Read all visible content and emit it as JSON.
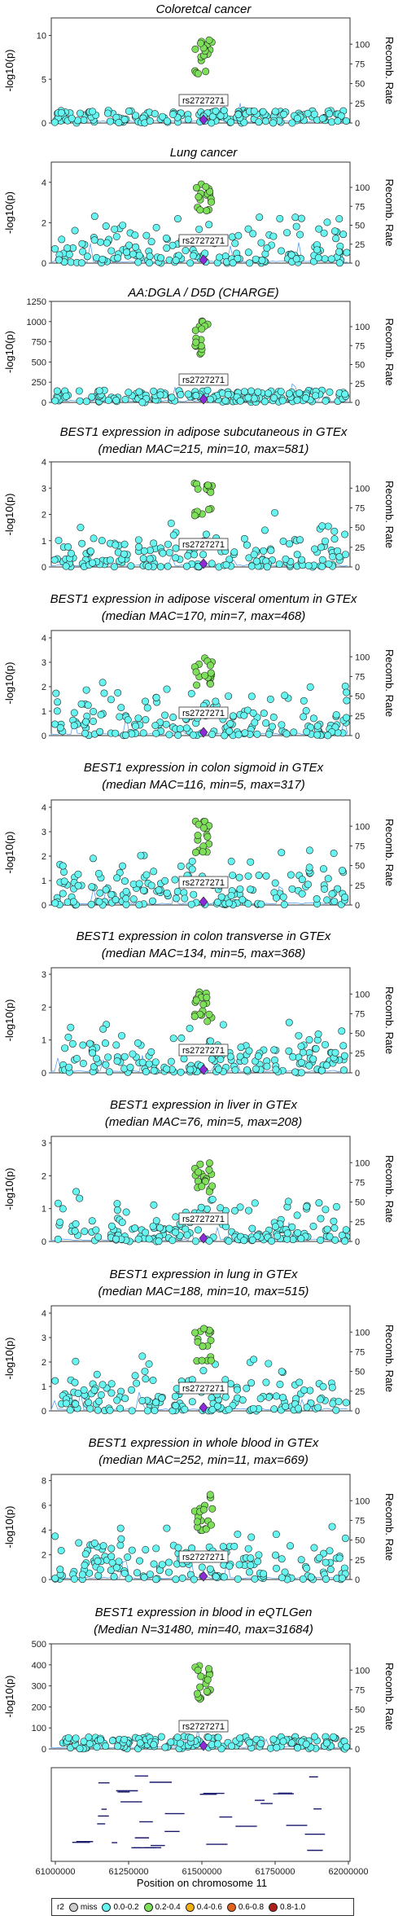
{
  "colors": {
    "point": "#66f5f0",
    "r2_02_04": "#7ee05a",
    "lead": "#8e2ad8",
    "r2_04_06": "#f0b010",
    "r2_06_08": "#e06420",
    "recomb": "#5aa0f0"
  },
  "lead_snp": "rs2727271",
  "ylabel": "-log10(p)",
  "y2label": "Recomb. Rate",
  "y2ticks": [
    "0",
    "25",
    "50",
    "75",
    "100"
  ],
  "chart_data": [
    {
      "type": "scatter",
      "title": "Coloretcal cancer",
      "ymax": 12,
      "yticks": [
        0,
        5,
        10
      ]
    },
    {
      "type": "scatter",
      "title": "Lung cancer",
      "ymax": 5,
      "yticks": [
        0,
        2,
        4
      ]
    },
    {
      "type": "scatter",
      "title": "AA:DGLA / D5D (CHARGE)",
      "ymax": 1250,
      "yticks": [
        0,
        250,
        500,
        750,
        1000,
        1250
      ]
    },
    {
      "type": "scatter",
      "title": "BEST1 expression in adipose subcutaneous in GTEx",
      "subtitle": "(median MAC=215, min=10, max=581)",
      "ymax": 4,
      "yticks": [
        0,
        1,
        2,
        3,
        4
      ]
    },
    {
      "type": "scatter",
      "title": "BEST1 expression in adipose visceral omentum in GTEx",
      "subtitle": "(median MAC=170, min=7, max=468)",
      "ymax": 4.3,
      "yticks": [
        0,
        1,
        2,
        3,
        4
      ]
    },
    {
      "type": "scatter",
      "title": "BEST1 expression in colon sigmoid in GTEx",
      "subtitle": "(median MAC=116, min=5, max=317)",
      "ymax": 4.3,
      "yticks": [
        0,
        1,
        2,
        3,
        4
      ]
    },
    {
      "type": "scatter",
      "title": "BEST1 expression in colon transverse in GTEx",
      "subtitle": "(median MAC=134, min=5, max=368)",
      "ymax": 3.2,
      "yticks": [
        0,
        1,
        2,
        3
      ]
    },
    {
      "type": "scatter",
      "title": "BEST1 expression in liver in GTEx",
      "subtitle": "(median MAC=76, min=5, max=208)",
      "ymax": 3.2,
      "yticks": [
        0,
        1,
        2,
        3
      ]
    },
    {
      "type": "scatter",
      "title": "BEST1 expression in lung in GTEx",
      "subtitle": "(median MAC=188, min=10, max=515)",
      "ymax": 4.3,
      "yticks": [
        0,
        1,
        2,
        3,
        4
      ]
    },
    {
      "type": "scatter",
      "title": "BEST1 expression in whole blood in GTEx",
      "subtitle": "(median MAC=252, min=11, max=669)",
      "ymax": 8.5,
      "yticks": [
        0,
        2,
        4,
        6,
        8
      ]
    },
    {
      "type": "scatter",
      "title": "BEST1 expression in blood in eQTLGen",
      "subtitle": "(Median N=31480, min=40, max=31684)",
      "ymax": 500,
      "yticks": [
        0,
        100,
        200,
        300,
        400,
        500
      ]
    }
  ],
  "genes_xticks": [
    "61000000",
    "61250000",
    "61500000",
    "61750000",
    "62000000"
  ],
  "genes_xlabel": "Position on chromosome 11",
  "legend": {
    "title": "r2",
    "items": [
      "miss",
      "0.0-0.2",
      "0.2-0.4",
      "0.4-0.6",
      "0.6-0.8",
      "0.8-1.0"
    ],
    "colors": [
      "#cccccc",
      "#66f5f0",
      "#7ee05a",
      "#f0b010",
      "#e06420",
      "#b0201a"
    ]
  }
}
